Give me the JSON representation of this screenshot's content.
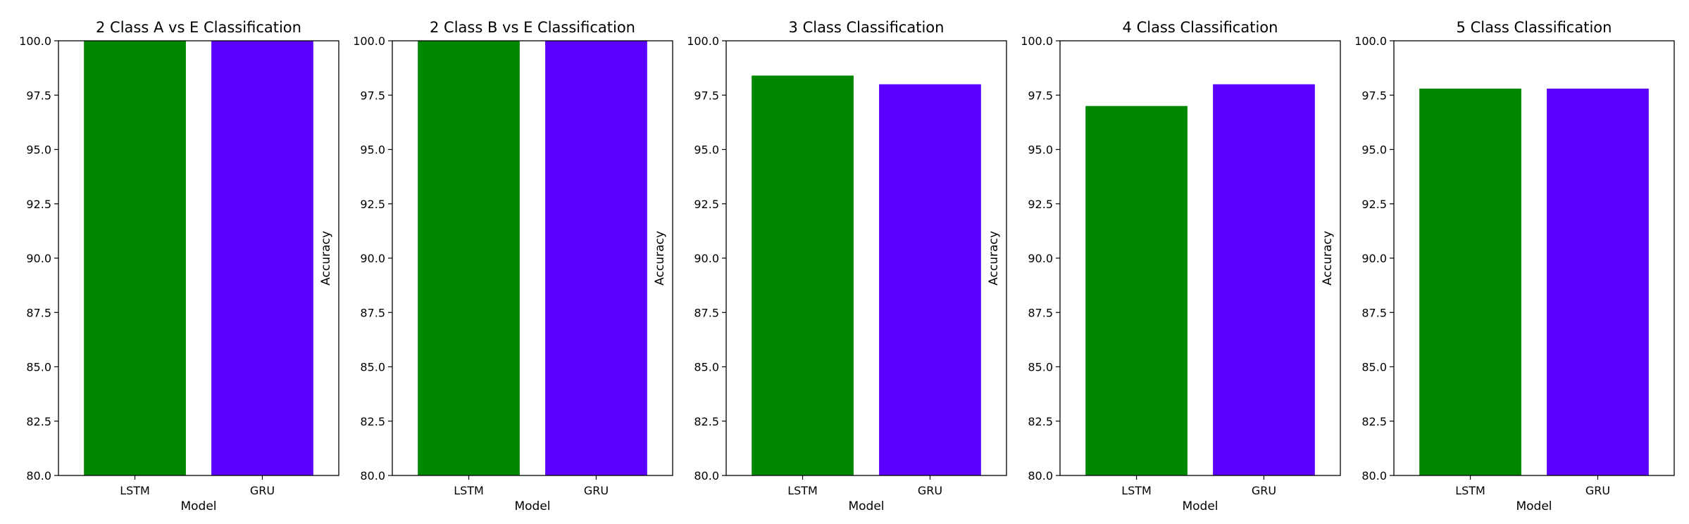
{
  "colors": {
    "lstm": "#008800",
    "gru": "#5b00ff"
  },
  "chart_data": [
    {
      "type": "bar",
      "title": "2 Class A vs E Classification",
      "categories": [
        "LSTM",
        "GRU"
      ],
      "values": [
        100.0,
        100.0
      ],
      "xlabel": "Model",
      "ylabel": "Accuracy",
      "ylim": [
        80.0,
        100.0
      ],
      "yticks": [
        "80.0",
        "82.5",
        "85.0",
        "87.5",
        "90.0",
        "92.5",
        "95.0",
        "97.5",
        "100.0"
      ],
      "grid": false
    },
    {
      "type": "bar",
      "title": "2 Class B vs E Classification",
      "categories": [
        "LSTM",
        "GRU"
      ],
      "values": [
        100.0,
        100.0
      ],
      "xlabel": "Model",
      "ylabel": "Accuracy",
      "ylim": [
        80.0,
        100.0
      ],
      "yticks": [
        "80.0",
        "82.5",
        "85.0",
        "87.5",
        "90.0",
        "92.5",
        "95.0",
        "97.5",
        "100.0"
      ],
      "grid": false
    },
    {
      "type": "bar",
      "title": "3 Class Classification",
      "categories": [
        "LSTM",
        "GRU"
      ],
      "values": [
        98.4,
        98.0
      ],
      "xlabel": "Model",
      "ylabel": "Accuracy",
      "ylim": [
        80.0,
        100.0
      ],
      "yticks": [
        "80.0",
        "82.5",
        "85.0",
        "87.5",
        "90.0",
        "92.5",
        "95.0",
        "97.5",
        "100.0"
      ],
      "grid": false
    },
    {
      "type": "bar",
      "title": "4 Class Classification",
      "categories": [
        "LSTM",
        "GRU"
      ],
      "values": [
        97.0,
        98.0
      ],
      "xlabel": "Model",
      "ylabel": "Accuracy",
      "ylim": [
        80.0,
        100.0
      ],
      "yticks": [
        "80.0",
        "82.5",
        "85.0",
        "87.5",
        "90.0",
        "92.5",
        "95.0",
        "97.5",
        "100.0"
      ],
      "grid": false
    },
    {
      "type": "bar",
      "title": "5 Class Classification",
      "categories": [
        "LSTM",
        "GRU"
      ],
      "values": [
        97.8,
        97.8
      ],
      "xlabel": "Model",
      "ylabel": "Accuracy",
      "ylim": [
        80.0,
        100.0
      ],
      "yticks": [
        "80.0",
        "82.5",
        "85.0",
        "87.5",
        "90.0",
        "92.5",
        "95.0",
        "97.5",
        "100.0"
      ],
      "grid": false
    }
  ]
}
